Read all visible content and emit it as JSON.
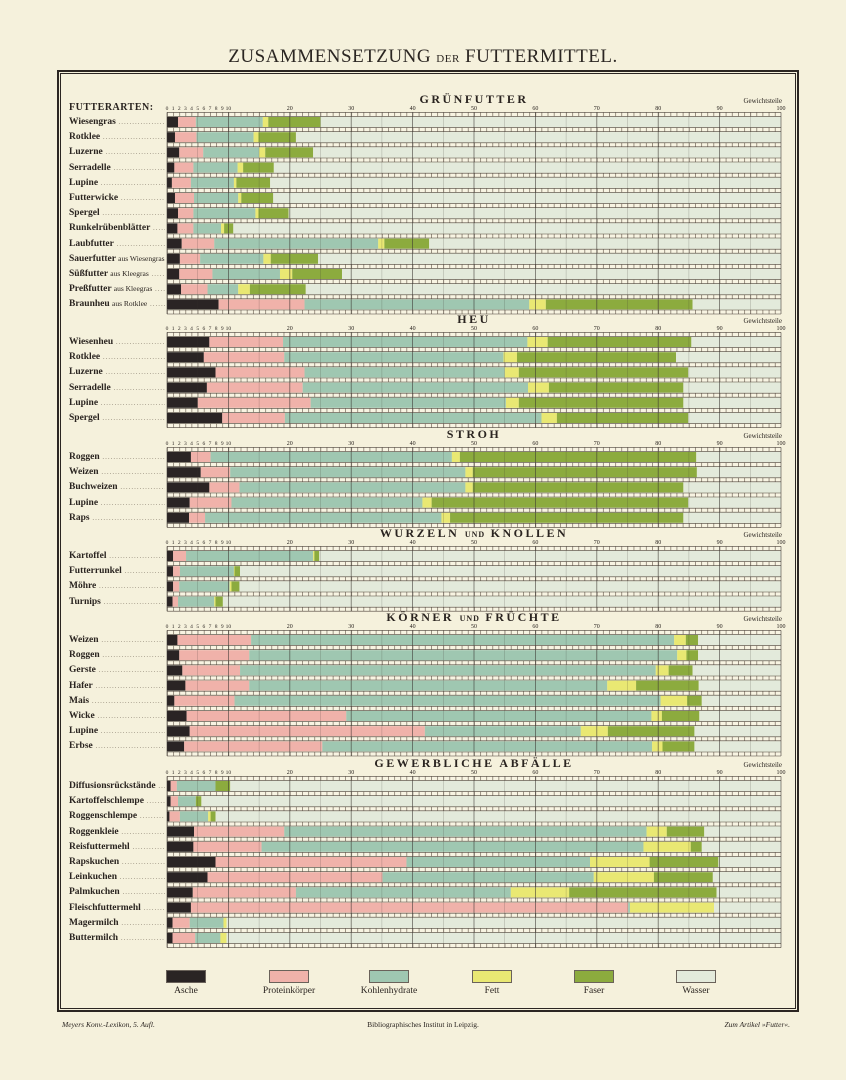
{
  "page": {
    "title_main_1": "ZUSAMMENSETZUNG",
    "title_small": "DER",
    "title_main_2": "FUTTERMITTEL."
  },
  "footer": {
    "left": "Meyers Konv.-Lexikon, 5. Aufl.",
    "center": "Bibliographisches Institut in Leipzig.",
    "right": "Zum Artikel »Futter«."
  },
  "chart_data": {
    "type": "bar",
    "orientation": "horizontal",
    "stacked": true,
    "row_heading": "FUTTERARTEN:",
    "unit_label": "Gewichtsteile",
    "xlim": [
      0,
      100
    ],
    "x_tick_labels": [
      "0",
      "1",
      "2",
      "3",
      "4",
      "5",
      "6",
      "7",
      "8",
      "9",
      "10",
      "20",
      "30",
      "40",
      "50",
      "60",
      "70",
      "80",
      "90",
      "100"
    ],
    "grid": true,
    "legend_position": "bottom",
    "components": [
      {
        "name": "Asche",
        "color": "#2a2424"
      },
      {
        "name": "Proteinkörper",
        "color": "#f0b2aa"
      },
      {
        "name": "Kohlenhydrate",
        "color": "#9fc7b1"
      },
      {
        "name": "Fett",
        "color": "#e9e873"
      },
      {
        "name": "Faser",
        "color": "#8cab3e"
      },
      {
        "name": "Wasser",
        "color": "#e3eadb"
      }
    ],
    "groups": [
      {
        "title": "GRÜNFUTTER",
        "title_und": "",
        "title_2": "",
        "items": [
          {
            "name": "Wiesengras",
            "suffix": "",
            "values": [
              1.8,
              2.9,
              10.9,
              0.9,
              8.5,
              75.0
            ]
          },
          {
            "name": "Rotklee",
            "suffix": "",
            "values": [
              1.3,
              3.5,
              9.3,
              0.8,
              6.1,
              79.0
            ]
          },
          {
            "name": "Luzerne",
            "suffix": "",
            "values": [
              2.0,
              3.9,
              9.1,
              1.0,
              7.8,
              76.2
            ]
          },
          {
            "name": "Serradelle",
            "suffix": "",
            "values": [
              1.2,
              3.1,
              7.2,
              0.9,
              5.0,
              82.6
            ]
          },
          {
            "name": "Lupine",
            "suffix": "",
            "values": [
              0.8,
              3.1,
              7.0,
              0.4,
              5.5,
              83.2
            ]
          },
          {
            "name": "Futterwicke",
            "suffix": "",
            "values": [
              1.3,
              3.1,
              7.2,
              0.5,
              5.2,
              82.7
            ]
          },
          {
            "name": "Spergel",
            "suffix": "",
            "values": [
              1.8,
              2.5,
              10.1,
              0.5,
              4.9,
              80.2
            ]
          },
          {
            "name": "Runkelrübenblätter",
            "suffix": "",
            "values": [
              1.7,
              2.6,
              4.5,
              0.5,
              1.5,
              89.2
            ]
          },
          {
            "name": "Laubfutter",
            "suffix": "",
            "values": [
              2.4,
              5.3,
              26.7,
              1.0,
              7.3,
              57.3
            ]
          },
          {
            "name": "Sauerfutter",
            "suffix": "aus Wiesengras",
            "values": [
              2.1,
              3.3,
              10.3,
              1.2,
              7.7,
              75.4
            ]
          },
          {
            "name": "Süßfutter",
            "suffix": "aus Kleegras",
            "values": [
              2.0,
              5.4,
              11.0,
              2.0,
              8.1,
              71.5
            ]
          },
          {
            "name": "Preßfutter",
            "suffix": "aus Kleegras",
            "values": [
              2.3,
              4.3,
              5.0,
              1.9,
              9.1,
              77.4
            ]
          },
          {
            "name": "Braunheu",
            "suffix": "aus Rotklee",
            "values": [
              8.4,
              14.0,
              36.6,
              2.7,
              23.9,
              14.4
            ]
          }
        ]
      },
      {
        "title": "HEU",
        "title_und": "",
        "title_2": "",
        "items": [
          {
            "name": "Wiesenheu",
            "suffix": "",
            "values": [
              6.9,
              12.0,
              39.8,
              3.3,
              23.4,
              14.6
            ]
          },
          {
            "name": "Rotklee",
            "suffix": "",
            "values": [
              6.0,
              13.1,
              35.7,
              2.2,
              25.9,
              17.1
            ]
          },
          {
            "name": "Luzerne",
            "suffix": "",
            "values": [
              7.9,
              14.5,
              32.6,
              2.3,
              27.6,
              15.1
            ]
          },
          {
            "name": "Serradelle",
            "suffix": "",
            "values": [
              6.5,
              15.6,
              36.7,
              3.4,
              21.9,
              15.9
            ]
          },
          {
            "name": "Lupine",
            "suffix": "",
            "values": [
              5.0,
              18.4,
              31.8,
              2.1,
              26.8,
              15.9
            ]
          },
          {
            "name": "Spergel",
            "suffix": "",
            "values": [
              9.0,
              10.2,
              41.8,
              2.5,
              21.4,
              15.1
            ]
          }
        ]
      },
      {
        "title": "STROH",
        "title_und": "",
        "title_2": "",
        "items": [
          {
            "name": "Roggen",
            "suffix": "",
            "values": [
              3.9,
              3.2,
              39.3,
              1.3,
              38.5,
              13.8
            ]
          },
          {
            "name": "Weizen",
            "suffix": "",
            "values": [
              5.5,
              4.8,
              38.3,
              1.2,
              36.5,
              13.7
            ]
          },
          {
            "name": "Buchweizen",
            "suffix": "",
            "values": [
              6.9,
              4.9,
              36.8,
              1.2,
              34.3,
              15.9
            ]
          },
          {
            "name": "Lupine",
            "suffix": "",
            "values": [
              3.7,
              6.8,
              31.1,
              1.5,
              41.8,
              15.1
            ]
          },
          {
            "name": "Raps",
            "suffix": "",
            "values": [
              3.6,
              2.6,
              38.5,
              1.4,
              38.0,
              15.9
            ]
          }
        ]
      },
      {
        "title": "WURZELN",
        "title_und": "UND",
        "title_2": "KNOLLEN",
        "items": [
          {
            "name": "Kartoffel",
            "suffix": "",
            "values": [
              1.0,
              2.1,
              20.7,
              0.2,
              0.8,
              75.2
            ]
          },
          {
            "name": "Futterrunkel",
            "suffix": "",
            "values": [
              1.0,
              1.1,
              8.8,
              0.1,
              0.9,
              88.1
            ]
          },
          {
            "name": "Möhre",
            "suffix": "",
            "values": [
              1.0,
              1.0,
              8.2,
              0.3,
              1.3,
              88.2
            ]
          },
          {
            "name": "Turnips",
            "suffix": "",
            "values": [
              0.9,
              0.9,
              5.9,
              0.2,
              1.2,
              90.9
            ]
          }
        ]
      },
      {
        "title": "KÖRNER",
        "title_und": "UND",
        "title_2": "FRÜCHTE",
        "items": [
          {
            "name": "Weizen",
            "suffix": "",
            "values": [
              1.7,
              12.0,
              68.9,
              1.9,
              2.0,
              13.5
            ]
          },
          {
            "name": "Roggen",
            "suffix": "",
            "values": [
              2.0,
              11.4,
              69.7,
              1.5,
              1.9,
              13.5
            ]
          },
          {
            "name": "Gerste",
            "suffix": "",
            "values": [
              2.5,
              9.4,
              67.7,
              2.1,
              3.9,
              14.4
            ]
          },
          {
            "name": "Hafer",
            "suffix": "",
            "values": [
              3.0,
              10.4,
              58.3,
              4.7,
              10.2,
              13.4
            ]
          },
          {
            "name": "Mais",
            "suffix": "",
            "values": [
              1.2,
              9.8,
              69.4,
              4.3,
              2.4,
              12.9
            ]
          },
          {
            "name": "Wicke",
            "suffix": "",
            "values": [
              3.2,
              26.0,
              49.7,
              1.7,
              6.1,
              13.3
            ]
          },
          {
            "name": "Lupine",
            "suffix": "",
            "values": [
              3.7,
              38.3,
              25.4,
              4.4,
              14.1,
              14.1
            ]
          },
          {
            "name": "Erbse",
            "suffix": "",
            "values": [
              2.8,
              22.5,
              53.7,
              1.7,
              5.2,
              14.1
            ]
          }
        ]
      },
      {
        "title": "GEWERBLICHE ABFÄLLE",
        "title_und": "",
        "title_2": "",
        "items": [
          {
            "name": "Diffusionsrückstände",
            "suffix": "",
            "values": [
              0.6,
              1.0,
              6.3,
              0.0,
              2.4,
              89.7
            ]
          },
          {
            "name": "Kartoffelschlempe",
            "suffix": "",
            "values": [
              0.6,
              1.2,
              2.9,
              0.0,
              0.9,
              94.4
            ]
          },
          {
            "name": "Roggenschlempe",
            "suffix": "",
            "values": [
              0.4,
              1.7,
              4.6,
              0.4,
              0.8,
              92.1
            ]
          },
          {
            "name": "Roggenkleie",
            "suffix": "",
            "values": [
              4.4,
              14.7,
              59.0,
              3.3,
              6.1,
              12.5
            ]
          },
          {
            "name": "Reisfuttermehl",
            "suffix": "",
            "values": [
              4.3,
              11.1,
              62.2,
              7.7,
              1.8,
              12.9
            ]
          },
          {
            "name": "Rapskuchen",
            "suffix": "",
            "values": [
              7.9,
              31.1,
              29.9,
              9.7,
              11.2,
              10.2
            ]
          },
          {
            "name": "Leinkuchen",
            "suffix": "",
            "values": [
              6.6,
              28.5,
              34.4,
              9.8,
              9.6,
              11.1
            ]
          },
          {
            "name": "Palmkuchen",
            "suffix": "",
            "values": [
              4.2,
              16.8,
              35.0,
              9.5,
              24.0,
              10.5
            ]
          },
          {
            "name": "Fleischfuttermehl",
            "suffix": "",
            "values": [
              3.9,
              71.2,
              0.3,
              13.7,
              0.0,
              10.9
            ]
          },
          {
            "name": "Magermilch",
            "suffix": "",
            "values": [
              0.9,
              2.8,
              5.5,
              0.5,
              0.0,
              90.3
            ]
          },
          {
            "name": "Buttermilch",
            "suffix": "",
            "values": [
              0.9,
              3.7,
              4.1,
              1.0,
              0.0,
              90.3
            ]
          }
        ]
      }
    ]
  }
}
